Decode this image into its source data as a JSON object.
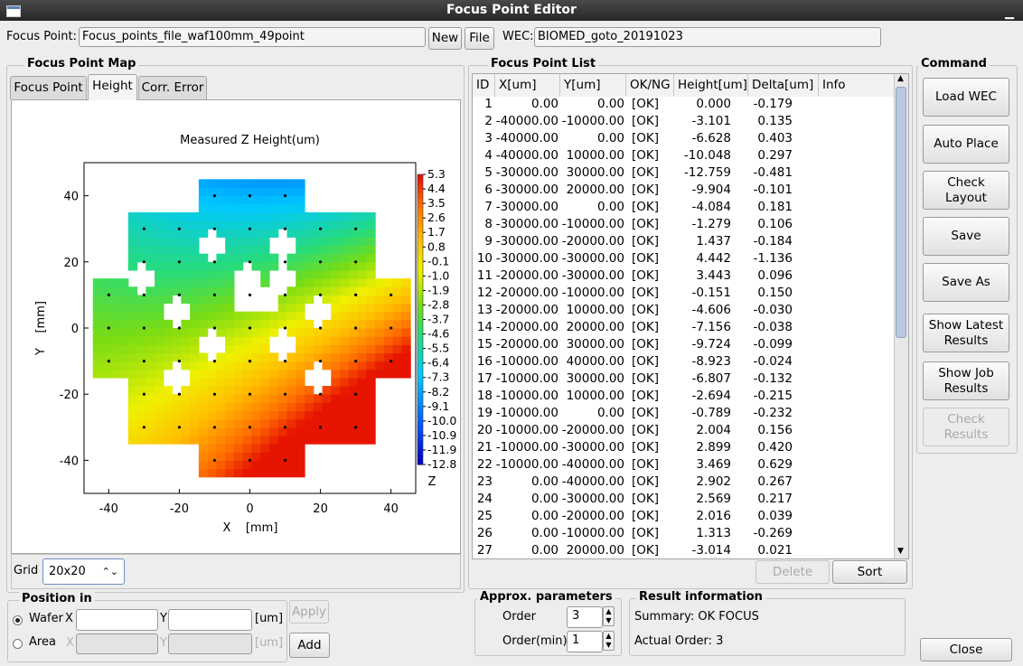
{
  "window": {
    "title": "Focus Point Editor",
    "minimize_glyph": "▁"
  },
  "top": {
    "focus_point_label": "Focus Point:",
    "focus_point_value": "Focus_points_file_waf100mm_49point",
    "new_label": "New",
    "file_label": "File",
    "wec_label": "WEC:",
    "wec_value": "BIOMED_goto_20191023"
  },
  "map": {
    "group_title": "Focus Point Map",
    "tabs": [
      {
        "label": "Focus Point",
        "active": false
      },
      {
        "label": "Height",
        "active": true
      },
      {
        "label": "Corr. Error",
        "active": false
      }
    ],
    "grid_label": "Grid",
    "grid_value": "20x20"
  },
  "chart_data": {
    "type": "heatmap",
    "title": "Measured Z Height(um)",
    "xlabel": "X    [mm]",
    "ylabel": "Y    [mm]",
    "xlim": [
      -47,
      47
    ],
    "ylim": [
      -50,
      50
    ],
    "xticks": [
      "-40",
      "-20",
      "0",
      "20",
      "40"
    ],
    "yticks": [
      "40",
      "20",
      "0",
      "-20",
      "-40"
    ],
    "colorbar_label": "Z",
    "colorbar_ticks": [
      "5.3",
      "4.4",
      "3.5",
      "2.6",
      "1.7",
      "0.8",
      "-0.1",
      "-1.0",
      "-1.9",
      "-2.8",
      "-3.7",
      "-4.6",
      "-5.5",
      "-6.4",
      "-7.3",
      "-8.2",
      "-9.1",
      "-10.0",
      "-10.9",
      "-11.9",
      "-12.8"
    ],
    "zlim": [
      -12.8,
      5.3
    ],
    "grid_step_mm": 10,
    "points_mm": [
      [
        -10,
        40
      ],
      [
        0,
        40
      ],
      [
        10,
        40
      ],
      [
        -30,
        30
      ],
      [
        -20,
        30
      ],
      [
        -10,
        30
      ],
      [
        0,
        30
      ],
      [
        10,
        30
      ],
      [
        20,
        30
      ],
      [
        30,
        30
      ],
      [
        -30,
        20
      ],
      [
        -20,
        20
      ],
      [
        -10,
        20
      ],
      [
        0,
        20
      ],
      [
        10,
        20
      ],
      [
        20,
        20
      ],
      [
        30,
        20
      ],
      [
        -40,
        10
      ],
      [
        -30,
        10
      ],
      [
        -20,
        10
      ],
      [
        -10,
        10
      ],
      [
        0,
        10
      ],
      [
        10,
        10
      ],
      [
        20,
        10
      ],
      [
        30,
        10
      ],
      [
        40,
        10
      ],
      [
        -40,
        0
      ],
      [
        -30,
        0
      ],
      [
        -20,
        0
      ],
      [
        -10,
        0
      ],
      [
        0,
        0
      ],
      [
        10,
        0
      ],
      [
        20,
        0
      ],
      [
        30,
        0
      ],
      [
        40,
        0
      ],
      [
        -40,
        -10
      ],
      [
        -30,
        -10
      ],
      [
        -20,
        -10
      ],
      [
        -10,
        -10
      ],
      [
        0,
        -10
      ],
      [
        10,
        -10
      ],
      [
        20,
        -10
      ],
      [
        30,
        -10
      ],
      [
        40,
        -10
      ],
      [
        -30,
        -20
      ],
      [
        -20,
        -20
      ],
      [
        -10,
        -20
      ],
      [
        0,
        -20
      ],
      [
        10,
        -20
      ],
      [
        20,
        -20
      ],
      [
        30,
        -20
      ],
      [
        -30,
        -30
      ],
      [
        -20,
        -30
      ],
      [
        -10,
        -30
      ],
      [
        0,
        -30
      ],
      [
        10,
        -30
      ],
      [
        20,
        -30
      ],
      [
        30,
        -30
      ],
      [
        -10,
        -40
      ],
      [
        0,
        -40
      ],
      [
        10,
        -40
      ]
    ]
  },
  "position": {
    "group_title": "Position in",
    "wafer_label": "Wafer",
    "area_label": "Area",
    "x_label": "X",
    "y_label": "Y",
    "unit_label": "[um]",
    "apply_label": "Apply",
    "add_label": "Add",
    "wafer_x": "",
    "wafer_y": "",
    "area_x": "",
    "area_y": ""
  },
  "list": {
    "group_title": "Focus Point List",
    "columns": [
      "ID",
      "X[um]",
      "Y[um]",
      "OK/NG",
      "Height[um]",
      "Delta[um]",
      "Info"
    ],
    "rows": [
      [
        "1",
        "0.00",
        "0.00",
        "[OK]",
        "0.000",
        "-0.179"
      ],
      [
        "2",
        "-40000.00",
        "-10000.00",
        "[OK]",
        "-3.101",
        "0.135"
      ],
      [
        "3",
        "-40000.00",
        "0.00",
        "[OK]",
        "-6.628",
        "0.403"
      ],
      [
        "4",
        "-40000.00",
        "10000.00",
        "[OK]",
        "-10.048",
        "0.297"
      ],
      [
        "5",
        "-30000.00",
        "30000.00",
        "[OK]",
        "-12.759",
        "-0.481"
      ],
      [
        "6",
        "-30000.00",
        "20000.00",
        "[OK]",
        "-9.904",
        "-0.101"
      ],
      [
        "7",
        "-30000.00",
        "0.00",
        "[OK]",
        "-4.084",
        "0.181"
      ],
      [
        "8",
        "-30000.00",
        "-10000.00",
        "[OK]",
        "-1.279",
        "0.106"
      ],
      [
        "9",
        "-30000.00",
        "-20000.00",
        "[OK]",
        "1.437",
        "-0.184"
      ],
      [
        "10",
        "-30000.00",
        "-30000.00",
        "[OK]",
        "4.442",
        "-1.136"
      ],
      [
        "11",
        "-20000.00",
        "-30000.00",
        "[OK]",
        "3.443",
        "0.096"
      ],
      [
        "12",
        "-20000.00",
        "-10000.00",
        "[OK]",
        "-0.151",
        "0.150"
      ],
      [
        "13",
        "-20000.00",
        "10000.00",
        "[OK]",
        "-4.606",
        "-0.030"
      ],
      [
        "14",
        "-20000.00",
        "20000.00",
        "[OK]",
        "-7.156",
        "-0.038"
      ],
      [
        "15",
        "-20000.00",
        "30000.00",
        "[OK]",
        "-9.724",
        "-0.099"
      ],
      [
        "16",
        "-10000.00",
        "40000.00",
        "[OK]",
        "-8.923",
        "-0.024"
      ],
      [
        "17",
        "-10000.00",
        "30000.00",
        "[OK]",
        "-6.807",
        "-0.132"
      ],
      [
        "18",
        "-10000.00",
        "10000.00",
        "[OK]",
        "-2.694",
        "-0.215"
      ],
      [
        "19",
        "-10000.00",
        "0.00",
        "[OK]",
        "-0.789",
        "-0.232"
      ],
      [
        "20",
        "-10000.00",
        "-20000.00",
        "[OK]",
        "2.004",
        "0.156"
      ],
      [
        "21",
        "-10000.00",
        "-30000.00",
        "[OK]",
        "2.899",
        "0.420"
      ],
      [
        "22",
        "-10000.00",
        "-40000.00",
        "[OK]",
        "3.469",
        "0.629"
      ],
      [
        "23",
        "0.00",
        "-40000.00",
        "[OK]",
        "2.902",
        "0.267"
      ],
      [
        "24",
        "0.00",
        "-30000.00",
        "[OK]",
        "2.569",
        "0.217"
      ],
      [
        "25",
        "0.00",
        "-20000.00",
        "[OK]",
        "2.016",
        "0.039"
      ],
      [
        "26",
        "0.00",
        "-10000.00",
        "[OK]",
        "1.313",
        "-0.269"
      ],
      [
        "27",
        "0.00",
        "20000.00",
        "[OK]",
        "-3.014",
        "0.021"
      ]
    ],
    "delete_label": "Delete",
    "sort_label": "Sort"
  },
  "approx": {
    "group_title": "Approx. parameters",
    "order_label": "Order",
    "order_value": "3",
    "order_min_label": "Order(min)",
    "order_min_value": "1"
  },
  "result": {
    "group_title": "Result information",
    "summary": "Summary: OK FOCUS",
    "actual_order": "Actual Order: 3"
  },
  "command": {
    "group_title": "Command",
    "buttons": [
      {
        "label": "Load WEC",
        "enabled": true
      },
      {
        "label": "Auto Place",
        "enabled": true
      },
      {
        "label": "Check\nLayout",
        "enabled": true
      },
      {
        "label": "Save",
        "enabled": true
      },
      {
        "label": "Save As",
        "enabled": true
      },
      {
        "label": "Show Latest\nResults",
        "enabled": true
      },
      {
        "label": "Show Job\nResults",
        "enabled": true
      },
      {
        "label": "Check\nResults",
        "enabled": false
      }
    ],
    "close_label": "Close"
  }
}
